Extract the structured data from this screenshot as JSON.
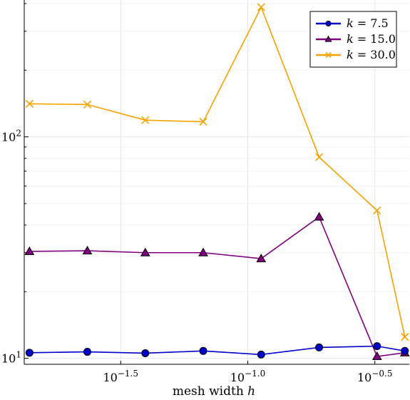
{
  "chart_data": {
    "type": "line",
    "title": "",
    "xlabel": "mesh width h",
    "ylabel": "",
    "x_scale": "log10",
    "y_scale": "log10",
    "xlim": [
      0.0132,
      0.432
    ],
    "ylim": [
      9.4,
      415
    ],
    "x_ticks": [
      {
        "value": 0.0316228,
        "label_base": "10",
        "label_exp": "−1.5"
      },
      {
        "value": 0.1,
        "label_base": "10",
        "label_exp": "−1.0"
      },
      {
        "value": 0.316228,
        "label_base": "10",
        "label_exp": "−0.5"
      }
    ],
    "y_ticks": [
      {
        "value": 10,
        "label_base": "10",
        "label_exp": "1"
      },
      {
        "value": 100,
        "label_base": "10",
        "label_exp": "2"
      }
    ],
    "grid": true,
    "legend_position": "top-right",
    "x": [
      0.01384,
      0.02338,
      0.03952,
      0.0668,
      0.1129,
      0.1909,
      0.3226,
      0.4149
    ],
    "series": [
      {
        "name": "k = 7.5",
        "label_var": "k",
        "label_value": "7.5",
        "color": "#0000cc",
        "marker": "circle",
        "values": [
          10.6,
          10.7,
          10.55,
          10.8,
          10.4,
          11.2,
          11.35,
          10.8
        ]
      },
      {
        "name": "k = 15.0",
        "label_var": "k",
        "label_value": "15.0",
        "color": "#800080",
        "marker": "triangle",
        "values": [
          30.4,
          30.6,
          30.0,
          30.0,
          28.2,
          43.5,
          10.2,
          10.6
        ]
      },
      {
        "name": "k = 30.0",
        "label_var": "k",
        "label_value": "30.0",
        "color": "#f5a300",
        "marker": "x",
        "values": [
          141,
          140,
          119,
          117,
          385,
          81,
          46.5,
          12.5
        ]
      }
    ]
  }
}
